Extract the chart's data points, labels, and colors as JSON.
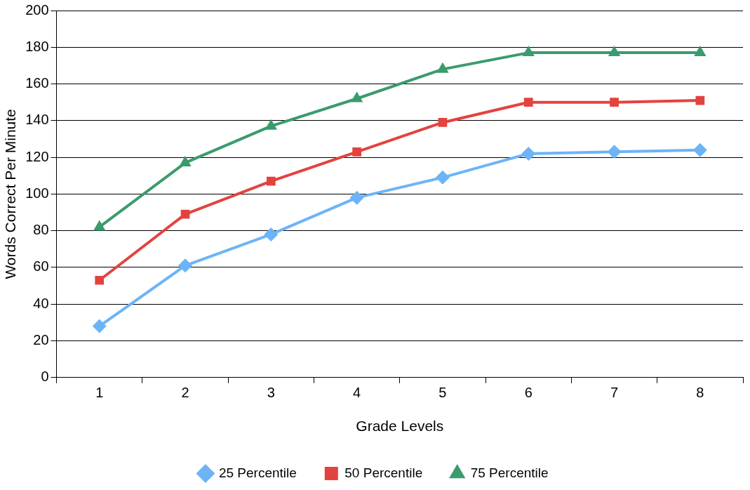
{
  "chart_data": {
    "type": "line",
    "xlabel": "Grade Levels",
    "ylabel": "Words Correct Per Minute",
    "categories": [
      "1",
      "2",
      "3",
      "4",
      "5",
      "6",
      "7",
      "8"
    ],
    "series": [
      {
        "name": "25 Percentile",
        "color": "#6cb4f7",
        "marker": "diamond",
        "values": [
          28,
          61,
          78,
          98,
          109,
          122,
          123,
          124
        ]
      },
      {
        "name": "50 Percentile",
        "color": "#e3433f",
        "marker": "square",
        "values": [
          53,
          89,
          107,
          123,
          139,
          150,
          150,
          151
        ]
      },
      {
        "name": "75 Percentile",
        "color": "#3a9b6c",
        "marker": "triangle",
        "values": [
          82,
          117,
          137,
          152,
          168,
          177,
          177,
          177
        ]
      }
    ],
    "ylim": [
      0,
      200
    ],
    "yticks": [
      0,
      20,
      40,
      60,
      80,
      100,
      120,
      140,
      160,
      180,
      200
    ],
    "grid": "y",
    "legend": "bottom",
    "line_style": "solid"
  }
}
